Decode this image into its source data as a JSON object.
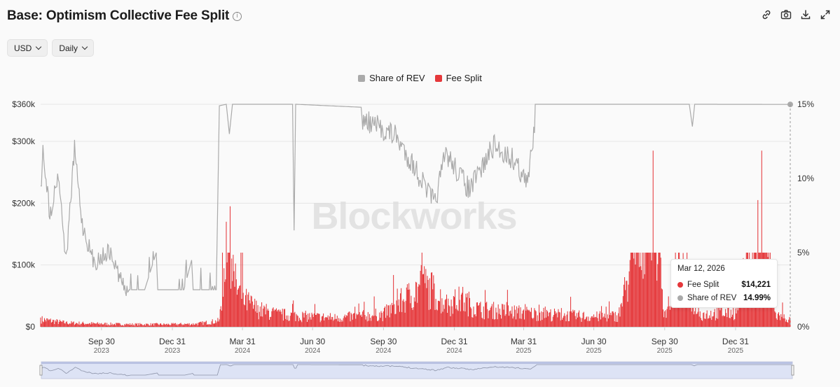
{
  "header": {
    "title": "Base: Optimism Collective Fee Split",
    "info_icon": "info-circle-icon",
    "tools": [
      "link-icon",
      "camera-icon",
      "download-icon",
      "expand-icon"
    ]
  },
  "controls": {
    "currency": "USD",
    "interval": "Daily"
  },
  "watermark": "Blockworks",
  "colors": {
    "fee_split": "#e5383b",
    "share_of_rev": "#aaaaaa",
    "navigator_fill": "#dde3f5"
  },
  "chart_data": {
    "type": "bar+line",
    "legend": [
      "Share of REV",
      "Fee Split"
    ],
    "y_left": {
      "ticks": [
        "$0",
        "$100k",
        "$200k",
        "$300k",
        "$360k"
      ],
      "values": [
        0,
        100000,
        200000,
        300000,
        360000
      ],
      "range": [
        0,
        360000
      ]
    },
    "y_right": {
      "ticks": [
        "0%",
        "5%",
        "10%",
        "15%"
      ],
      "values": [
        0,
        5,
        10,
        15
      ],
      "range": [
        0,
        15
      ]
    },
    "x_ticks": [
      {
        "label": "Sep 30",
        "year": "2023",
        "date": "2023-09-30"
      },
      {
        "label": "Dec 31",
        "year": "2023",
        "date": "2023-12-31"
      },
      {
        "label": "Mar 31",
        "year": "2024",
        "date": "2024-03-31"
      },
      {
        "label": "Jun 30",
        "year": "2024",
        "date": "2024-06-30"
      },
      {
        "label": "Sep 30",
        "year": "2024",
        "date": "2024-09-30"
      },
      {
        "label": "Dec 31",
        "year": "2024",
        "date": "2024-12-31"
      },
      {
        "label": "Mar 31",
        "year": "2025",
        "date": "2025-03-31"
      },
      {
        "label": "Jun 30",
        "year": "2025",
        "date": "2025-06-30"
      },
      {
        "label": "Sep 30",
        "year": "2025",
        "date": "2025-09-30"
      },
      {
        "label": "Dec 31",
        "year": "2025",
        "date": "2025-12-31"
      }
    ],
    "x_range": [
      "2023-07-13",
      "2026-03-12"
    ],
    "series": [
      {
        "name": "Fee Split",
        "kind": "bar",
        "axis": "left",
        "points": [
          [
            "2023-07-13",
            15000
          ],
          [
            "2023-08-15",
            8000
          ],
          [
            "2023-09-30",
            6000
          ],
          [
            "2023-11-01",
            5000
          ],
          [
            "2023-12-31",
            5000
          ],
          [
            "2024-02-01",
            6000
          ],
          [
            "2024-03-01",
            12000
          ],
          [
            "2024-03-10",
            170000
          ],
          [
            "2024-03-15",
            195000
          ],
          [
            "2024-03-20",
            90000
          ],
          [
            "2024-04-01",
            55000
          ],
          [
            "2024-04-20",
            35000
          ],
          [
            "2024-05-15",
            25000
          ],
          [
            "2024-06-30",
            20000
          ],
          [
            "2024-08-01",
            18000
          ],
          [
            "2024-09-30",
            25000
          ],
          [
            "2024-11-01",
            60000
          ],
          [
            "2024-11-20",
            85000
          ],
          [
            "2024-12-05",
            70000
          ],
          [
            "2024-12-20",
            45000
          ],
          [
            "2025-01-10",
            55000
          ],
          [
            "2025-02-01",
            35000
          ],
          [
            "2025-03-31",
            28000
          ],
          [
            "2025-05-01",
            25000
          ],
          [
            "2025-06-30",
            20000
          ],
          [
            "2025-08-01",
            22000
          ],
          [
            "2025-09-15",
            285000
          ],
          [
            "2025-09-30",
            25000
          ],
          [
            "2025-10-20",
            110000
          ],
          [
            "2025-11-15",
            25000
          ],
          [
            "2025-12-31",
            30000
          ],
          [
            "2026-01-29",
            205000
          ],
          [
            "2026-02-03",
            285000
          ],
          [
            "2026-02-20",
            25000
          ],
          [
            "2026-03-12",
            14221
          ]
        ]
      },
      {
        "name": "Share of REV",
        "kind": "line",
        "axis": "right",
        "points": [
          [
            "2023-07-13",
            9.5
          ],
          [
            "2023-07-16",
            12.7
          ],
          [
            "2023-07-25",
            8.1
          ],
          [
            "2023-08-05",
            11.0
          ],
          [
            "2023-08-15",
            5.0
          ],
          [
            "2023-08-26",
            12.6
          ],
          [
            "2023-09-05",
            7.5
          ],
          [
            "2023-09-20",
            4.9
          ],
          [
            "2023-10-10",
            5.7
          ],
          [
            "2023-10-25",
            3.8
          ],
          [
            "2023-11-05",
            2.5
          ],
          [
            "2023-11-25",
            2.5
          ],
          [
            "2023-12-10",
            5.0
          ],
          [
            "2023-12-12",
            2.5
          ],
          [
            "2024-01-15",
            2.5
          ],
          [
            "2024-01-25",
            4.5
          ],
          [
            "2024-01-27",
            2.5
          ],
          [
            "2024-02-26",
            2.5
          ],
          [
            "2024-03-01",
            14.9
          ],
          [
            "2024-03-10",
            15.0
          ],
          [
            "2024-03-14",
            13.0
          ],
          [
            "2024-03-18",
            15.0
          ],
          [
            "2024-06-04",
            15.0
          ],
          [
            "2024-06-06",
            6.5
          ],
          [
            "2024-06-08",
            15.0
          ],
          [
            "2024-09-01",
            14.8
          ],
          [
            "2024-10-15",
            13.7
          ],
          [
            "2024-11-10",
            11.5
          ],
          [
            "2024-12-01",
            9.5
          ],
          [
            "2024-12-05",
            9.0
          ],
          [
            "2024-12-20",
            12.5
          ],
          [
            "2025-01-20",
            10.0
          ],
          [
            "2025-02-20",
            13.0
          ],
          [
            "2025-03-20",
            12.0
          ],
          [
            "2025-04-05",
            10.3
          ],
          [
            "2025-04-15",
            15.0
          ],
          [
            "2025-11-01",
            15.0
          ],
          [
            "2025-11-05",
            13.5
          ],
          [
            "2025-11-08",
            15.0
          ],
          [
            "2026-03-12",
            14.99
          ]
        ]
      }
    ],
    "tooltip": {
      "date": "Mar 12, 2026",
      "rows": [
        {
          "name": "Fee Split",
          "value": "$14,221"
        },
        {
          "name": "Share of REV",
          "value": "14.99%"
        }
      ]
    }
  }
}
